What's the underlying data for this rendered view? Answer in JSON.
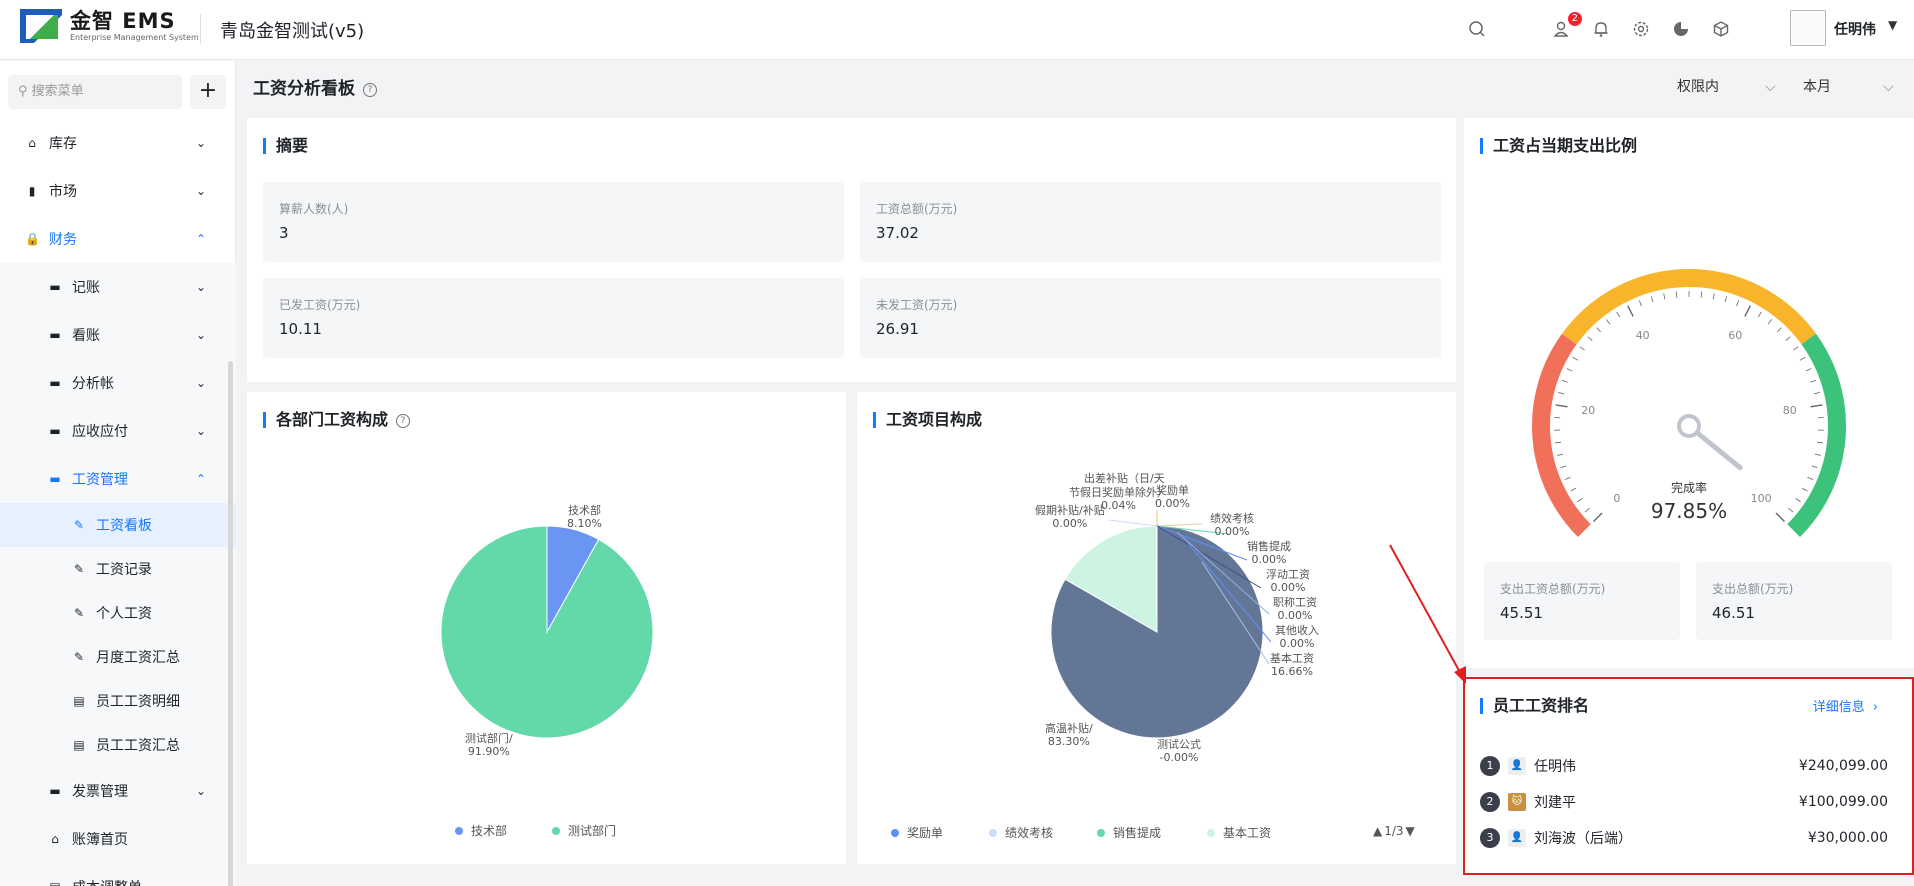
{
  "header": {
    "logo_main": "金智 EMS",
    "logo_sub": "Enterprise Management System",
    "app_title": "青岛金智测试(v5)",
    "notif_badge": "2",
    "user_name": "任明伟"
  },
  "sidebar": {
    "search_placeholder": "搜索菜单",
    "add_label": "+",
    "items": [
      {
        "label": "库存",
        "level": 1,
        "icon": "house-icon",
        "caret": "down"
      },
      {
        "label": "市场",
        "level": 1,
        "icon": "bookmark-icon",
        "caret": "down"
      },
      {
        "label": "财务",
        "level": 1,
        "icon": "lock-icon",
        "caret": "up",
        "active": true
      },
      {
        "label": "记账",
        "level": 2,
        "icon": "folder-icon",
        "caret": "down"
      },
      {
        "label": "看账",
        "level": 2,
        "icon": "folder-icon",
        "caret": "down"
      },
      {
        "label": "分析帐",
        "level": 2,
        "icon": "folder-icon",
        "caret": "down"
      },
      {
        "label": "应收应付",
        "level": 2,
        "icon": "folder-icon",
        "caret": "down"
      },
      {
        "label": "工资管理",
        "level": 2,
        "icon": "folder-icon",
        "caret": "up",
        "active": true
      },
      {
        "label": "工资看板",
        "level": 3,
        "icon": "edit-icon",
        "selected": true
      },
      {
        "label": "工资记录",
        "level": 3,
        "icon": "edit-icon"
      },
      {
        "label": "个人工资",
        "level": 3,
        "icon": "edit-icon"
      },
      {
        "label": "月度工资汇总",
        "level": 3,
        "icon": "edit-icon"
      },
      {
        "label": "员工工资明细",
        "level": 3,
        "icon": "doc-icon"
      },
      {
        "label": "员工工资汇总",
        "level": 3,
        "icon": "doc-icon"
      },
      {
        "label": "发票管理",
        "level": 2,
        "icon": "folder-icon",
        "caret": "down"
      },
      {
        "label": "账簿首页",
        "level": 2,
        "icon": "home-icon"
      },
      {
        "label": "成本调整单",
        "level": 2,
        "icon": "doc-icon"
      }
    ]
  },
  "page": {
    "title": "工资分析看板",
    "scope_select": "权限内",
    "period_select": "本月"
  },
  "summary": {
    "title": "摘要",
    "stats": [
      {
        "label": "算薪人数(人)",
        "value": "3"
      },
      {
        "label": "工资总额(万元)",
        "value": "37.02"
      },
      {
        "label": "已发工资(万元)",
        "value": "10.11"
      },
      {
        "label": "未发工资(万元)",
        "value": "26.91"
      }
    ]
  },
  "ratio": {
    "title": "工资占当期支出比例",
    "gauge_caption": "完成率",
    "gauge_value": "97.85%",
    "gauge_percent": 97.85,
    "ticks": [
      "0",
      "20",
      "40",
      "60",
      "80",
      "100"
    ],
    "stats": [
      {
        "label": "支出工资总额(万元)",
        "value": "45.51"
      },
      {
        "label": "支出总额(万元)",
        "value": "46.51"
      }
    ],
    "colors": {
      "low": "#f0705a",
      "mid": "#f8b42a",
      "high": "#3cc27a"
    }
  },
  "dept": {
    "title": "各部门工资构成",
    "labels": [
      {
        "name": "技术部",
        "pct": "8.10%"
      },
      {
        "name": "测试部门/",
        "pct": "91.90%"
      }
    ],
    "legend": [
      "技术部",
      "测试部门"
    ]
  },
  "items": {
    "title": "工资项目构成",
    "labels": [
      {
        "name": "出差补贴（日/天",
        "pct": ""
      },
      {
        "name": "节假日奖励单除外）",
        "pct": "0.04%"
      },
      {
        "name": "奖励单",
        "pct": "0.00%"
      },
      {
        "name": "假期补贴/补贴",
        "pct": "0.00%"
      },
      {
        "name": "绩效考核",
        "pct": "0.00%"
      },
      {
        "name": "销售提成",
        "pct": "0.00%"
      },
      {
        "name": "浮动工资",
        "pct": "0.00%"
      },
      {
        "name": "职称工资",
        "pct": "0.00%"
      },
      {
        "name": "其他收入",
        "pct": "0.00%"
      },
      {
        "name": "基本工资",
        "pct": "16.66%"
      },
      {
        "name": "高温补贴/",
        "pct": "83.30%"
      },
      {
        "name": "测试公式",
        "pct": "-0.00%"
      }
    ],
    "legend": [
      "奖励单",
      "绩效考核",
      "销售提成",
      "基本工资"
    ],
    "pager": "1/3"
  },
  "ranking": {
    "title": "员工工资排名",
    "detail_link": "详细信息",
    "rows": [
      {
        "rank": "1",
        "name": "任明伟",
        "amount": "¥240,099.00"
      },
      {
        "rank": "2",
        "name": "刘建平",
        "amount": "¥100,099.00"
      },
      {
        "rank": "3",
        "name": "刘海波（后端）",
        "amount": "¥30,000.00"
      }
    ]
  },
  "chart_data": [
    {
      "type": "pie",
      "title": "各部门工资构成",
      "categories": [
        "技术部",
        "测试部门"
      ],
      "values": [
        8.1,
        91.9
      ],
      "colors": [
        "#6a95f3",
        "#63d8a9"
      ],
      "legend": "bottom"
    },
    {
      "type": "pie",
      "title": "工资项目构成",
      "categories": [
        "高温补贴/",
        "基本工资",
        "出差补贴（日/天 节假日奖励单除外）",
        "奖励单",
        "假期补贴/补贴",
        "绩效考核",
        "销售提成",
        "浮动工资",
        "职称工资",
        "其他收入",
        "测试公式"
      ],
      "values": [
        83.3,
        16.66,
        0.04,
        0.0,
        0.0,
        0.0,
        0.0,
        0.0,
        0.0,
        0.0,
        -0.0
      ],
      "colors": [
        "#647696",
        "#cff3e3"
      ],
      "legend": "bottom"
    }
  ]
}
